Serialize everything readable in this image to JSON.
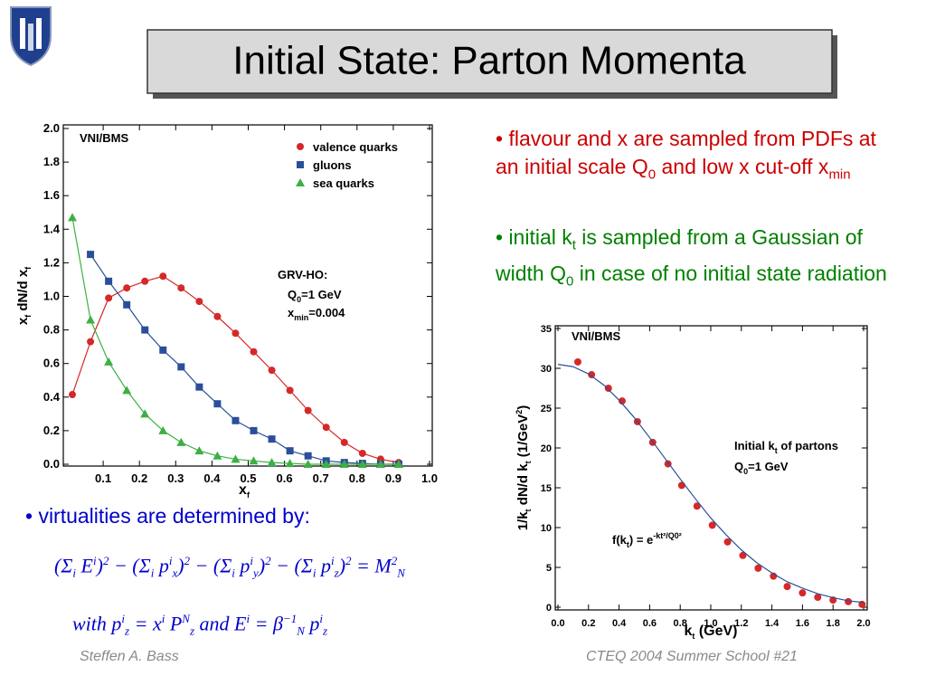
{
  "title": "Initial State: Parton Momenta",
  "bullets": [
    {
      "color": "#cc0000",
      "text": [
        "• flavour and x are sampled from PDFs at an initial scale Q",
        {
          "sub": "0"
        },
        " and low x cut-off x",
        {
          "sub": "min"
        }
      ]
    },
    {
      "color": "#008000",
      "text": [
        "• initial k",
        {
          "sub": "t"
        },
        " is sampled from a Gaussian of width Q",
        {
          "sub": "0"
        },
        " in case of no initial state radiation"
      ]
    },
    {
      "color": "#0000cc",
      "text": [
        "• virtualities are determined by:"
      ]
    }
  ],
  "formulas": [
    [
      "(Σ",
      {
        "sub": "i"
      },
      " E",
      {
        "sup": "i"
      },
      ")",
      {
        "sup": "2"
      },
      " − (Σ",
      {
        "sub": "i"
      },
      " p",
      {
        "sup": "i"
      },
      {
        "sub": "x"
      },
      ")",
      {
        "sup": "2"
      },
      " − (Σ",
      {
        "sub": "i"
      },
      " p",
      {
        "sup": "i"
      },
      {
        "sub": "y"
      },
      ")",
      {
        "sup": "2"
      },
      " − (Σ",
      {
        "sub": "i"
      },
      " p",
      {
        "sup": "i"
      },
      {
        "sub": "z"
      },
      ")",
      {
        "sup": "2"
      },
      " = M",
      {
        "sup": "2"
      },
      {
        "sub": "N"
      }
    ],
    [
      "with p",
      {
        "sup": "i"
      },
      {
        "sub": "z"
      },
      " = x",
      {
        "sup": "i"
      },
      " P",
      {
        "sup": "N"
      },
      {
        "sub": "z"
      },
      "  and E",
      {
        "sup": "i"
      },
      " = β",
      {
        "sup": "−1"
      },
      {
        "sub": "N"
      },
      " p",
      {
        "sup": "i"
      },
      {
        "sub": "z"
      }
    ]
  ],
  "footer": {
    "left": "Steffen A. Bass",
    "right": "CTEQ 2004 Summer School  #21"
  },
  "chart_data": [
    {
      "type": "scatter",
      "x_label": [
        "x",
        {
          "sub": "f"
        }
      ],
      "y_label": [
        "x",
        {
          "sub": "f"
        },
        " dN/d x",
        {
          "sub": "f"
        }
      ],
      "xlim": [
        0,
        1.0
      ],
      "ylim": [
        0,
        2.0
      ],
      "xticks": [
        0.1,
        0.2,
        0.3,
        0.4,
        0.5,
        0.6,
        0.7,
        0.8,
        0.9,
        {
          "value": 1,
          "label": "1.0"
        }
      ],
      "yticks": [
        {
          "value": 0,
          "label": "0.0"
        },
        0.2,
        0.4,
        0.6,
        0.8,
        {
          "value": 1,
          "label": "1.0"
        },
        1.2,
        1.4,
        1.6,
        1.8,
        {
          "value": 2,
          "label": "2.0"
        }
      ],
      "legend": "upper right",
      "annotations": [
        [
          "VNI/BMS"
        ],
        [
          "GRV-HO:"
        ],
        [
          "Q",
          {
            "sub": "0"
          },
          "=1 GeV"
        ],
        [
          "x",
          {
            "sub": "min"
          },
          "=0.004"
        ]
      ],
      "series": [
        {
          "name": "valence quarks",
          "color": "#d62828",
          "marker": "circle",
          "line": true,
          "x": [
            0.015,
            0.065,
            0.115,
            0.165,
            0.215,
            0.265,
            0.315,
            0.365,
            0.415,
            0.465,
            0.515,
            0.565,
            0.615,
            0.665,
            0.715,
            0.765,
            0.815,
            0.865,
            0.915
          ],
          "values": [
            0.415,
            0.73,
            0.99,
            1.05,
            1.09,
            1.12,
            1.05,
            0.97,
            0.88,
            0.78,
            0.67,
            0.56,
            0.44,
            0.32,
            0.22,
            0.13,
            0.065,
            0.03,
            0.01
          ]
        },
        {
          "name": "gluons",
          "color": "#2a4f9a",
          "marker": "square",
          "line": true,
          "x": [
            0.065,
            0.115,
            0.165,
            0.215,
            0.265,
            0.315,
            0.365,
            0.415,
            0.465,
            0.515,
            0.565,
            0.615,
            0.665,
            0.715,
            0.765,
            0.815,
            0.865,
            0.915
          ],
          "values": [
            1.25,
            1.09,
            0.95,
            0.8,
            0.68,
            0.58,
            0.46,
            0.36,
            0.26,
            0.2,
            0.15,
            0.08,
            0.05,
            0.02,
            0.01,
            0.005,
            0,
            0
          ]
        },
        {
          "name": "sea quarks",
          "color": "#3cb043",
          "marker": "triangle",
          "line": true,
          "x": [
            0.015,
            0.065,
            0.115,
            0.165,
            0.215,
            0.265,
            0.315,
            0.365,
            0.415,
            0.465,
            0.515,
            0.565,
            0.615,
            0.665,
            0.715,
            0.765,
            0.815,
            0.865,
            0.915
          ],
          "values": [
            1.47,
            0.86,
            0.61,
            0.44,
            0.3,
            0.2,
            0.13,
            0.08,
            0.05,
            0.03,
            0.02,
            0.01,
            0.005,
            0,
            0,
            0,
            0,
            0,
            0
          ]
        }
      ]
    },
    {
      "type": "scatter",
      "x_label": [
        "k",
        {
          "sub": "t"
        },
        " (GeV)"
      ],
      "y_label": [
        "1/k",
        {
          "sub": "t"
        },
        " dN/d k",
        {
          "sub": "t"
        },
        " (1/GeV",
        {
          "sup": "2"
        },
        ")"
      ],
      "xlim": [
        0,
        2.0
      ],
      "ylim": [
        0,
        35
      ],
      "xticks": [
        {
          "value": 0,
          "label": "0.0"
        },
        0.2,
        0.4,
        0.6,
        0.8,
        {
          "value": 1,
          "label": "1.0"
        },
        1.2,
        1.4,
        1.6,
        1.8,
        {
          "value": 2,
          "label": "2.0"
        }
      ],
      "yticks": [
        0,
        5,
        10,
        15,
        20,
        25,
        30,
        35
      ],
      "annotations": [
        [
          "VNI/BMS"
        ],
        [
          "Initial k",
          {
            "sub": "t"
          },
          " of partons"
        ],
        [
          "Q",
          {
            "sub": "0"
          },
          "=1 GeV"
        ],
        [
          "f(k",
          {
            "sub": "t"
          },
          ") = e",
          {
            "sup": "-kt²/Q0²"
          }
        ]
      ],
      "series": [
        {
          "color": "#d62828",
          "marker": "circle",
          "line": false,
          "x": [
            0.13,
            0.22,
            0.33,
            0.42,
            0.52,
            0.62,
            0.72,
            0.81,
            0.91,
            1.01,
            1.11,
            1.21,
            1.31,
            1.41,
            1.5,
            1.6,
            1.7,
            1.8,
            1.9,
            1.99
          ],
          "values": [
            30.8,
            29.2,
            27.5,
            25.9,
            23.3,
            20.7,
            18.0,
            15.3,
            12.7,
            10.3,
            8.2,
            6.5,
            4.9,
            3.9,
            2.6,
            1.8,
            1.25,
            0.9,
            0.7,
            0.35
          ]
        },
        {
          "color": "#2a4f9a",
          "marker": "none",
          "line": true,
          "x": [
            0,
            0.1,
            0.2,
            0.3,
            0.4,
            0.5,
            0.6,
            0.7,
            0.8,
            0.9,
            1.0,
            1.1,
            1.2,
            1.3,
            1.4,
            1.5,
            1.6,
            1.7,
            1.8,
            1.9,
            2.0
          ],
          "values": [
            30.5,
            30.2,
            29.3,
            27.9,
            26.0,
            23.8,
            21.3,
            18.7,
            16.1,
            13.6,
            11.2,
            9.1,
            7.2,
            5.6,
            4.3,
            3.2,
            2.4,
            1.7,
            1.2,
            0.8,
            0.6
          ]
        }
      ]
    }
  ]
}
